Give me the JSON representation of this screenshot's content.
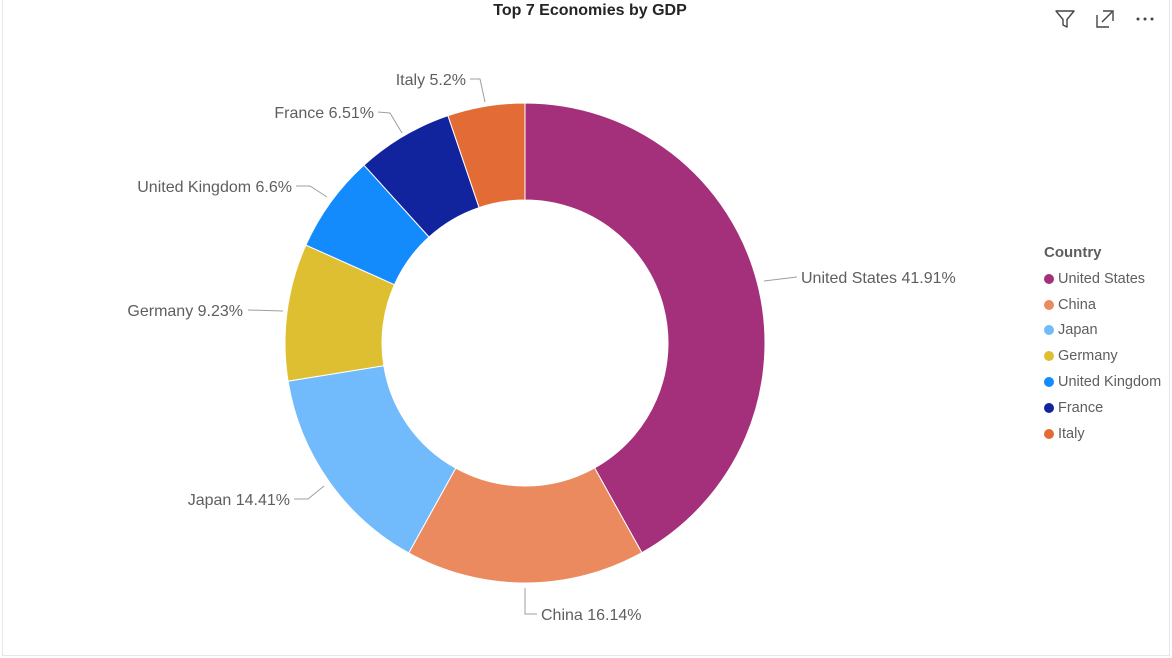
{
  "chart_data": {
    "type": "pie",
    "title": "Top 7 Economies by GDP",
    "legend_title": "Country",
    "legend_position": "right",
    "slices": [
      {
        "label": "United States",
        "value": 41.91,
        "pct_label": "41.91%",
        "color": "#A4307C"
      },
      {
        "label": "China",
        "value": 16.14,
        "pct_label": "16.14%",
        "color": "#EA8A5E"
      },
      {
        "label": "Japan",
        "value": 14.41,
        "pct_label": "14.41%",
        "color": "#71BBFC"
      },
      {
        "label": "Germany",
        "value": 9.23,
        "pct_label": "9.23%",
        "color": "#DFBF32"
      },
      {
        "label": "United Kingdom",
        "value": 6.6,
        "pct_label": "6.6%",
        "color": "#138BFC"
      },
      {
        "label": "France",
        "value": 6.51,
        "pct_label": "6.51%",
        "color": "#12239E"
      },
      {
        "label": "Italy",
        "value": 5.2,
        "pct_label": "5.2%",
        "color": "#E36C36"
      }
    ]
  },
  "toolbar": {
    "icons": [
      "filter-icon",
      "focus-mode-icon",
      "more-options-icon"
    ]
  }
}
